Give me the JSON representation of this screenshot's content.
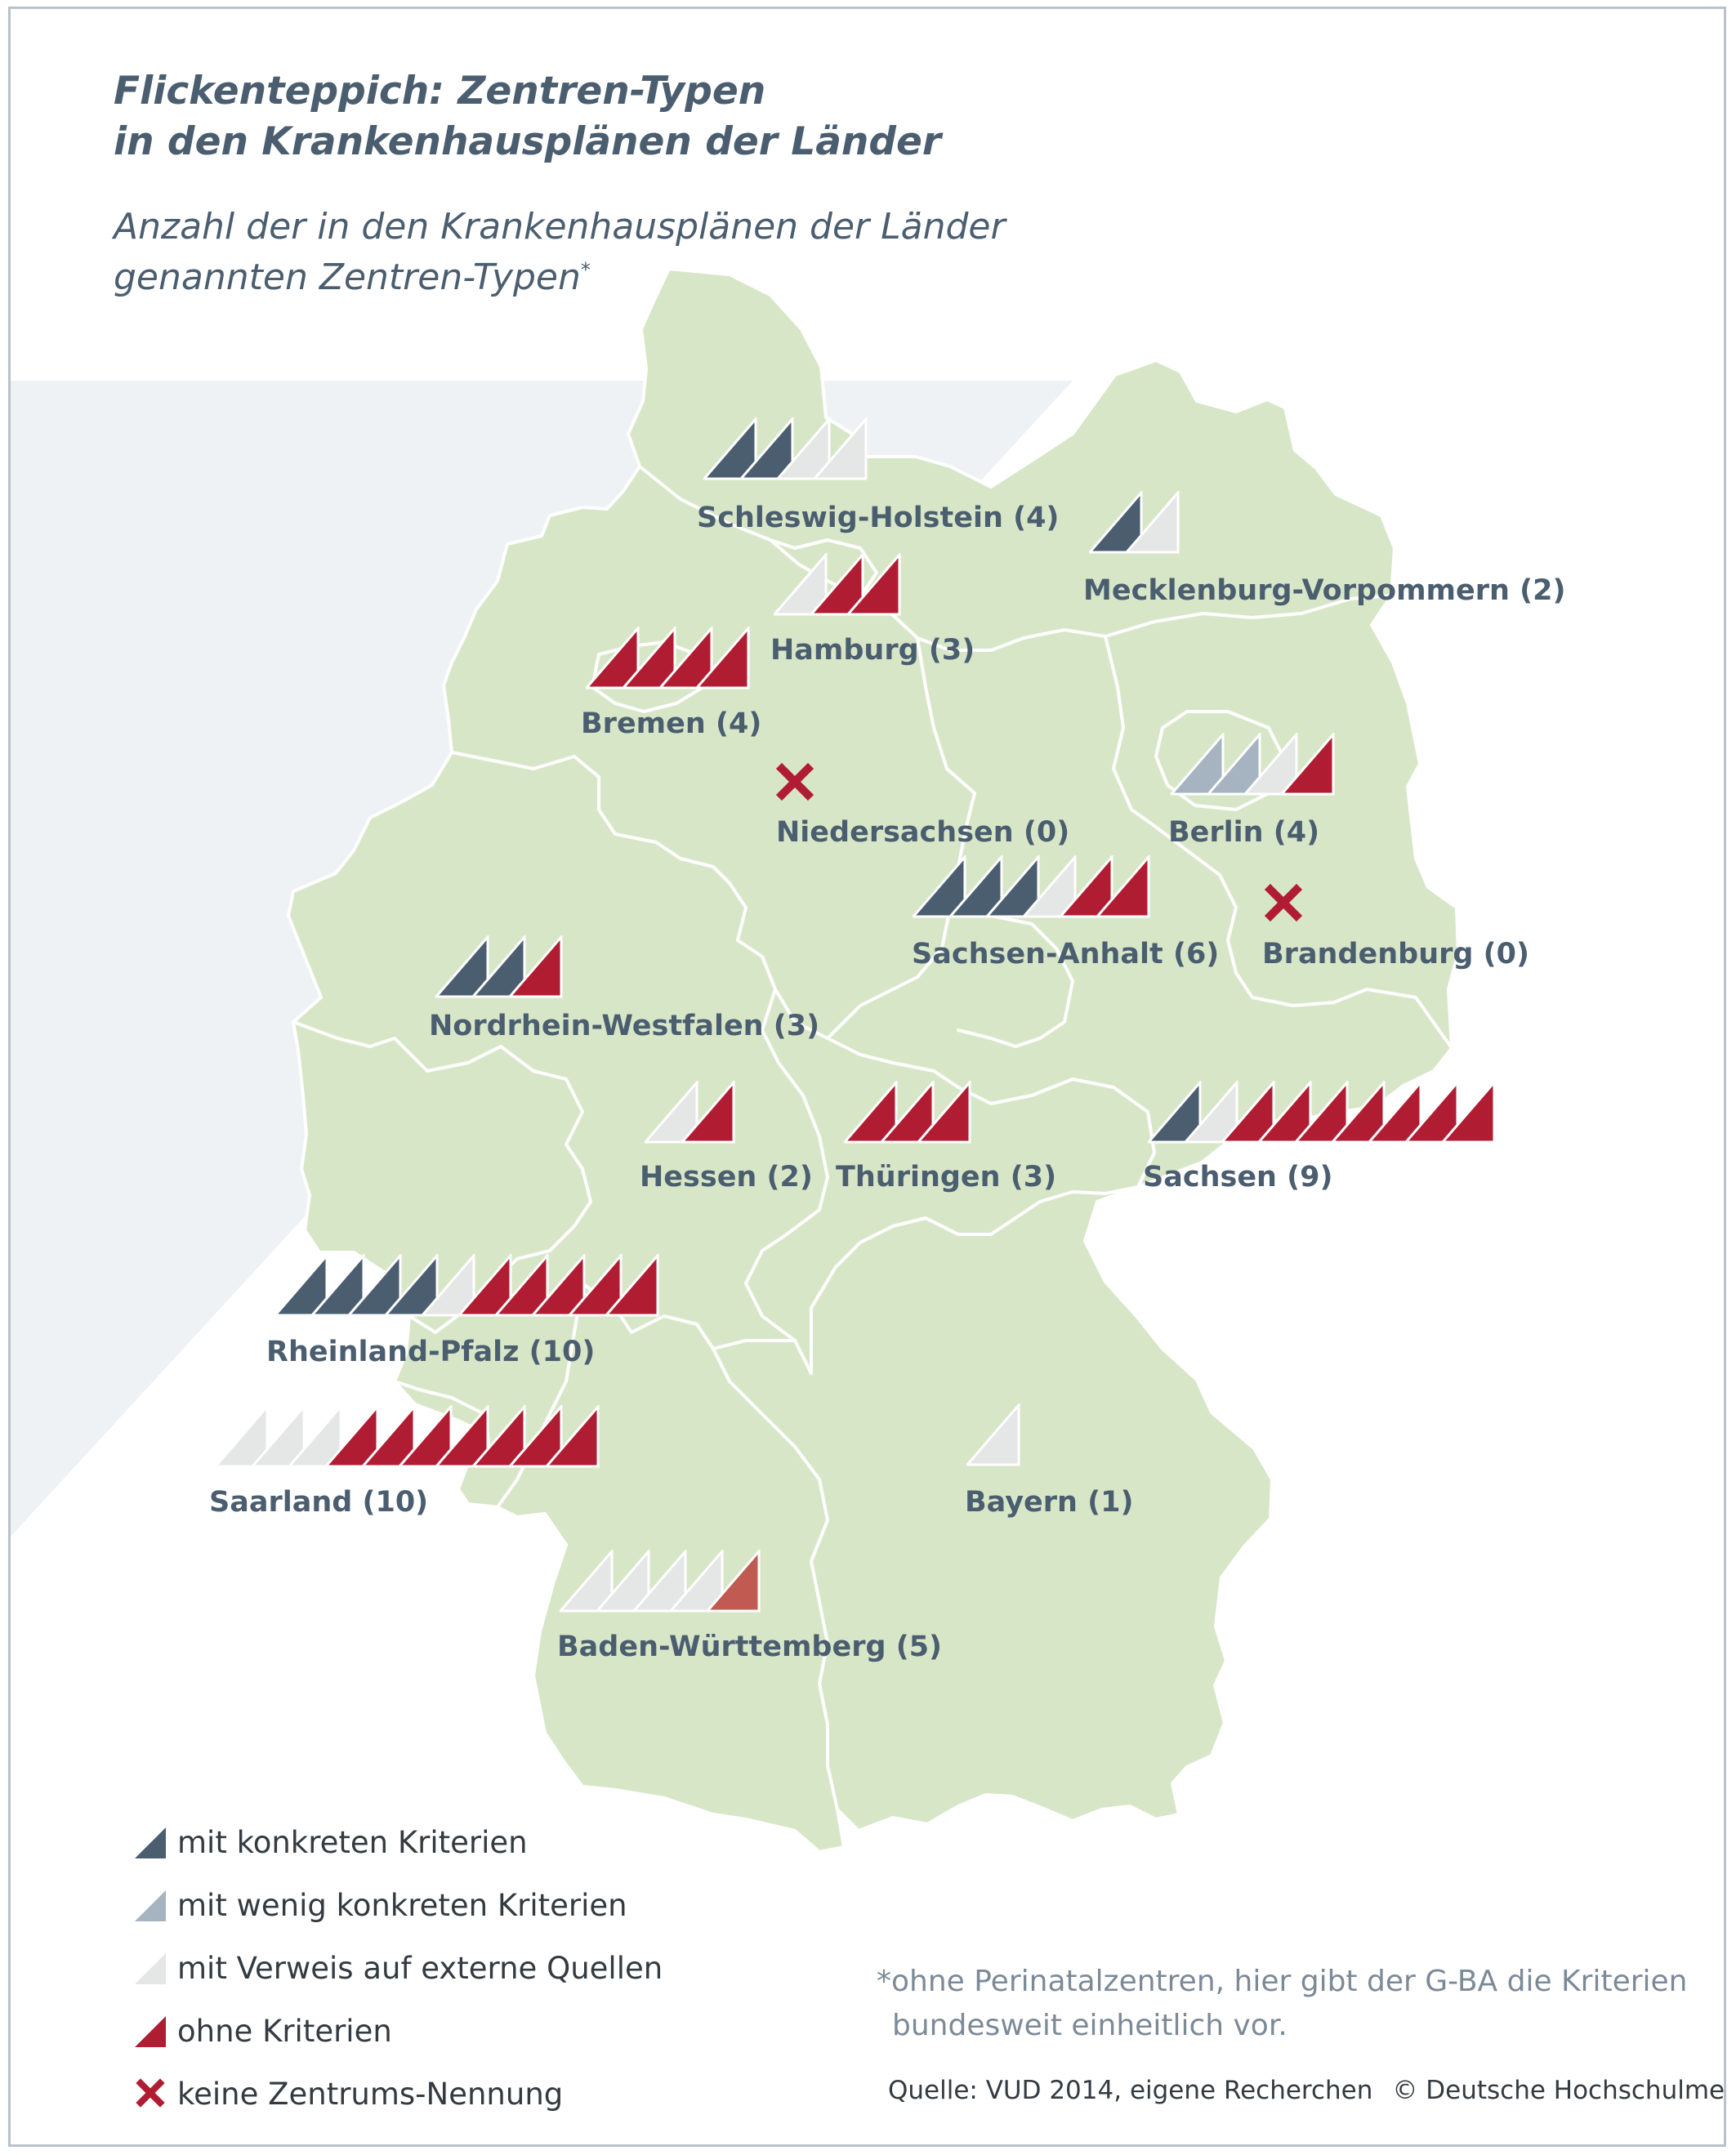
{
  "title": {
    "line1": "Flickenteppich: Zentren-Typen",
    "line2": "in den Krankenhausplänen der Länder"
  },
  "subtitle": {
    "line1": "Anzahl der in den Krankenhausplänen der Länder",
    "line2": "genannten Zentren-Typen",
    "footnote_mark": "*"
  },
  "colors": {
    "konkret": "#4b5e70",
    "wenig_konkret": "#a6b3c1",
    "extern": "#e5e6e6",
    "ohne": "#b01d33",
    "ohne_light": "#c15b52",
    "none_mark": "#b01d33",
    "land": "#d8e6c8",
    "border": "#ffffff",
    "background_band": "#eef2f5"
  },
  "states": [
    {
      "name": "Schleswig-Holstein",
      "label": "Schleswig-Holstein (4)",
      "count": 4,
      "types": [
        "konkret",
        "konkret",
        "extern",
        "extern"
      ]
    },
    {
      "name": "Mecklenburg-Vorpommern",
      "label": "Mecklenburg-Vorpommern (2)",
      "count": 2,
      "types": [
        "konkret",
        "extern"
      ]
    },
    {
      "name": "Hamburg",
      "label": "Hamburg (3)",
      "count": 3,
      "types": [
        "extern",
        "ohne",
        "ohne"
      ]
    },
    {
      "name": "Bremen",
      "label": "Bremen (4)",
      "count": 4,
      "types": [
        "ohne",
        "ohne",
        "ohne",
        "ohne"
      ]
    },
    {
      "name": "Niedersachsen",
      "label": "Niedersachsen (0)",
      "count": 0,
      "types": []
    },
    {
      "name": "Berlin",
      "label": "Berlin (4)",
      "count": 4,
      "types": [
        "wenig_konkret",
        "wenig_konkret",
        "extern",
        "ohne"
      ]
    },
    {
      "name": "Sachsen-Anhalt",
      "label": "Sachsen-Anhalt (6)",
      "count": 6,
      "types": [
        "konkret",
        "konkret",
        "konkret",
        "extern",
        "ohne",
        "ohne"
      ]
    },
    {
      "name": "Brandenburg",
      "label": "Brandenburg (0)",
      "count": 0,
      "types": []
    },
    {
      "name": "Nordrhein-Westfalen",
      "label": "Nordrhein-Westfalen (3)",
      "count": 3,
      "types": [
        "konkret",
        "konkret",
        "ohne"
      ]
    },
    {
      "name": "Hessen",
      "label": "Hessen (2)",
      "count": 2,
      "types": [
        "extern",
        "ohne"
      ]
    },
    {
      "name": "Thüringen",
      "label": "Thüringen (3)",
      "count": 3,
      "types": [
        "ohne",
        "ohne",
        "ohne"
      ]
    },
    {
      "name": "Sachsen",
      "label": "Sachsen (9)",
      "count": 9,
      "types": [
        "konkret",
        "extern",
        "ohne",
        "ohne",
        "ohne",
        "ohne",
        "ohne",
        "ohne",
        "ohne"
      ]
    },
    {
      "name": "Rheinland-Pfalz",
      "label": "Rheinland-Pfalz (10)",
      "count": 10,
      "types": [
        "konkret",
        "konkret",
        "konkret",
        "konkret",
        "extern",
        "ohne",
        "ohne",
        "ohne",
        "ohne",
        "ohne"
      ]
    },
    {
      "name": "Saarland",
      "label": "Saarland (10)",
      "count": 10,
      "types": [
        "extern",
        "extern",
        "extern",
        "ohne",
        "ohne",
        "ohne",
        "ohne",
        "ohne",
        "ohne",
        "ohne"
      ]
    },
    {
      "name": "Bayern",
      "label": "Bayern (1)",
      "count": 1,
      "types": [
        "extern"
      ]
    },
    {
      "name": "Baden-Württemberg",
      "label": "Baden-Württemberg (5)",
      "count": 5,
      "types": [
        "extern",
        "extern",
        "extern",
        "extern",
        "ohne_light"
      ]
    }
  ],
  "legend": [
    {
      "kind": "konkret",
      "label": "mit konkreten Kriterien"
    },
    {
      "kind": "wenig_konkret",
      "label": "mit wenig konkreten Kriterien"
    },
    {
      "kind": "extern",
      "label": "mit Verweis auf externe Quellen"
    },
    {
      "kind": "ohne",
      "label": "ohne Kriterien"
    },
    {
      "kind": "none",
      "label": "keine Zentrums-Nennung"
    }
  ],
  "footnote": {
    "line1": "*ohne Perinatalzentren, hier gibt der G-BA die Kriterien",
    "line2": "bundesweit einheitlich vor."
  },
  "source": {
    "text": "Quelle: VUD 2014, eigene Recherchen",
    "copyright": "© Deutsche Hochschulmedizin"
  }
}
